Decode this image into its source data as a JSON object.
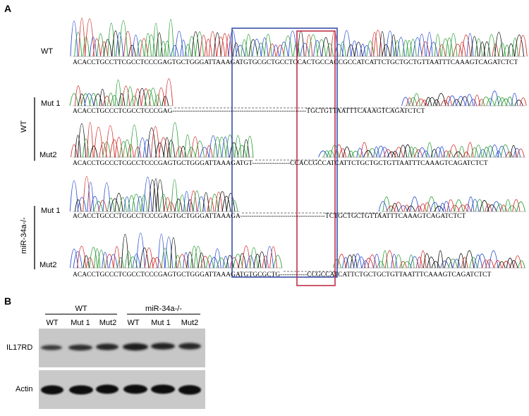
{
  "panel_a": {
    "letter": "A",
    "group_labels": {
      "wt": "WT",
      "ko": "miR-34a-/-"
    },
    "rows": [
      {
        "label": "WT",
        "sequence": "ACACCTGCCTTCGCCTCCCGAGTGCTGGGATTAAAGATGTGCGCTGCCTCCACTGCCACCGCCATCATTCTGCTGCTGTTAATTTCAAAGTCAGATCTCT"
      },
      {
        "label": "Mut 1",
        "sequence": "ACACCTGCCCTCGCCTCCCGAG------------------------------------------------------------TGCTGTTAATTTCAAAGTCAGATCTCT"
      },
      {
        "label": "Mut2",
        "sequence": "ACACCTGCCCTCGCCTCCCGAGTGCTGGGATTAAAGATGT-----------------CCACCGCCATCATTCTGCTGCTGTTAATTTCAAAGTCAGATCTCT"
      },
      {
        "label": "Mut 1",
        "sequence": "ACACCTGCCCTCGCCTCCCGAGTGCTGGGATTAAAGA--------------------------------------TCTGCTGCTGTTAATTTCAAAGTCAGATCTCT"
      },
      {
        "label": "Mut2",
        "sequence": "ACACCTGCCCTCGCCTCCCGAGTGCTGGGATTAAAGATGTGCGCTG------------CCGCCATCATTCTGCTGCTGTTAATTTCAAAGTCAGATCTCT"
      }
    ],
    "box_colors": {
      "outer": "#3a4fa8",
      "inner": "#c0304a"
    },
    "trace_colors": {
      "A": "#2e9e3a",
      "C": "#2c4fcf",
      "G": "#111111",
      "T": "#d0302c"
    }
  },
  "panel_b": {
    "letter": "B",
    "groups": [
      {
        "label": "WT",
        "lanes": [
          "WT",
          "Mut 1",
          "Mut2"
        ]
      },
      {
        "label": "miR-34a-/-",
        "lanes": [
          "WT",
          "Mut 1",
          "Mut2"
        ]
      }
    ],
    "blots": [
      {
        "label": "IL17RD"
      },
      {
        "label": "Actin"
      }
    ]
  }
}
